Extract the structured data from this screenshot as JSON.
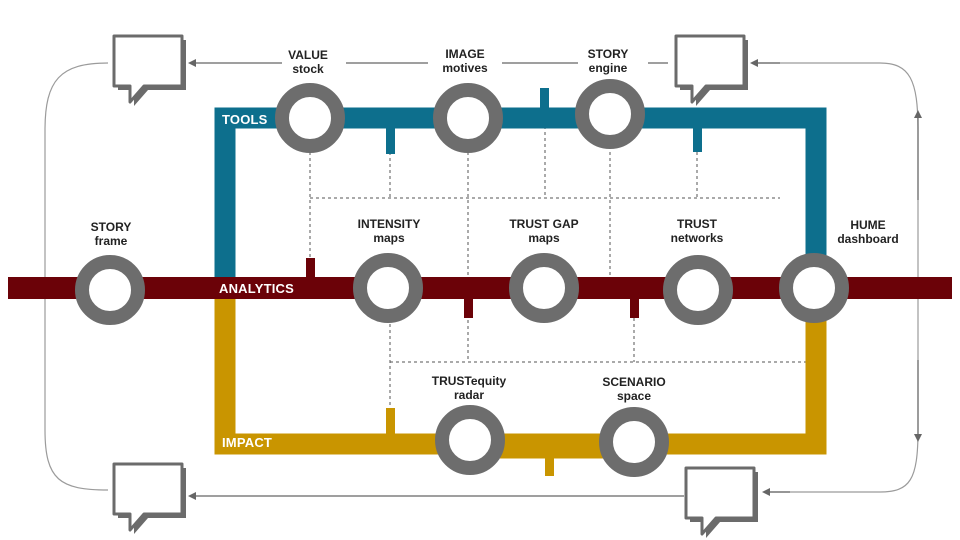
{
  "colors": {
    "tools": "#0d6f8d",
    "analytics": "#6b0208",
    "impact": "#c99500",
    "station": "#6d6d6d",
    "loop": "#999999",
    "connector": "#444444"
  },
  "lines": {
    "tools": "TOOLS",
    "analytics": "ANALYTICS",
    "impact": "IMPACT"
  },
  "stations": [
    {
      "id": "value-stock",
      "title": "VALUE",
      "subtitle": "stock"
    },
    {
      "id": "image-motives",
      "title": "IMAGE",
      "subtitle": "motives"
    },
    {
      "id": "story-engine",
      "title": "STORY",
      "subtitle": "engine"
    },
    {
      "id": "story-frame",
      "title": "STORY",
      "subtitle": "frame"
    },
    {
      "id": "intensity-maps",
      "title": "INTENSITY",
      "subtitle": "maps"
    },
    {
      "id": "trust-gap-maps",
      "title": "TRUST GAP",
      "subtitle": "maps"
    },
    {
      "id": "trust-networks",
      "title": "TRUST",
      "subtitle": "networks"
    },
    {
      "id": "hume-dashboard",
      "title": "HUME",
      "subtitle": "dashboard"
    },
    {
      "id": "trustequity-radar",
      "title": "TRUSTequity",
      "subtitle": "radar"
    },
    {
      "id": "scenario-space",
      "title": "SCENARIO",
      "subtitle": "space"
    }
  ],
  "icons": [
    "speech-bubble-icon",
    "arrow-left-icon",
    "arrow-up-icon",
    "arrow-down-icon"
  ]
}
